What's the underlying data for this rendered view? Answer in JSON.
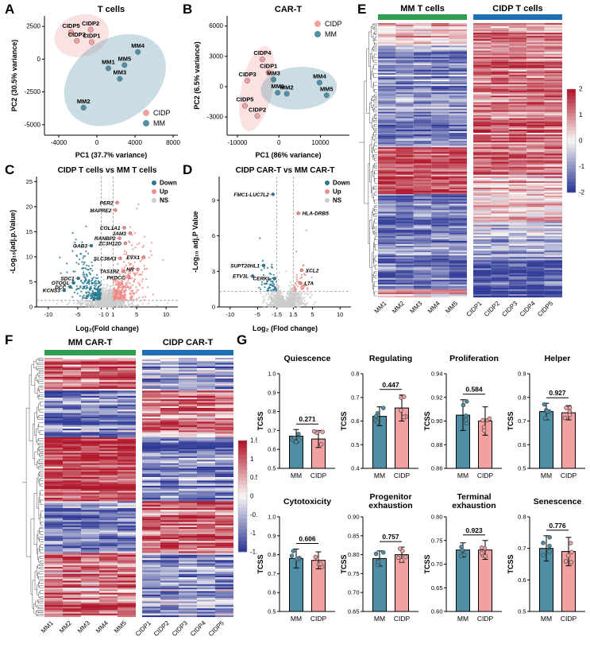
{
  "panel_letters": {
    "A": "A",
    "B": "B",
    "C": "C",
    "D": "D",
    "E": "E",
    "F": "F",
    "G": "G"
  },
  "colors": {
    "cidp_pink": "#F2A0A0",
    "cidp_pink_text": "#E06E6E",
    "mm_teal": "#4E8FA6",
    "mm_teal_text": "#2F6F85",
    "up_pink": "#EE8B87",
    "down_teal": "#27798F",
    "ns_gray": "#CBCBCB",
    "green_header": "#2E9E50",
    "blue_header": "#1F6FB5",
    "heat_pos": "#B2182B",
    "heat_neg": "#2F3A97",
    "heat_mid": "#F9F7F5"
  },
  "chart_data": [
    {
      "panel": "A",
      "type": "scatter",
      "title": "T cells",
      "xlabel": "PC1 (37.7% variance)",
      "ylabel": "PC2 (30.5% variance)",
      "xlim": [
        -5500,
        8500
      ],
      "ylim": [
        -5800,
        3300
      ],
      "xticks": [
        -4000,
        0,
        4000,
        8000
      ],
      "yticks": [
        -5000,
        -2500,
        0,
        2500
      ],
      "legend": [
        {
          "label": "CIDP",
          "color_key": "cidp_pink"
        },
        {
          "label": "MM",
          "color_key": "mm_teal"
        }
      ],
      "legend_pos": "bottom-right",
      "ellipses": [
        {
          "group": "CIDP",
          "cx": -1600,
          "cy": 1800,
          "rx": 2900,
          "ry": 1600,
          "rot": -15
        },
        {
          "group": "MM",
          "cx": 1900,
          "cy": -1600,
          "rx": 5800,
          "ry": 3100,
          "rot": -35
        }
      ],
      "groups": [
        {
          "name": "CIDP",
          "color_key": "cidp_pink",
          "points": [
            {
              "label": "CIDP5",
              "x": -2700,
              "y": 2050
            },
            {
              "label": "CIDP2",
              "x": -650,
              "y": 2250
            },
            {
              "label": "CIDP3",
              "x": -2100,
              "y": 1400
            },
            {
              "label": "CIDP1",
              "x": -550,
              "y": 1300
            }
          ]
        },
        {
          "name": "MM",
          "color_key": "mm_teal",
          "points": [
            {
              "label": "MM4",
              "x": 4300,
              "y": 550
            },
            {
              "label": "MM5",
              "x": 2900,
              "y": -450
            },
            {
              "label": "MM1",
              "x": 1200,
              "y": -700
            },
            {
              "label": "MM3",
              "x": 2400,
              "y": -1500
            },
            {
              "label": "MM2",
              "x": -1400,
              "y": -3700
            }
          ]
        }
      ]
    },
    {
      "panel": "B",
      "type": "scatter",
      "title": "CAR-T",
      "xlabel": "PC1 (86% variance)",
      "ylabel": "PC2 (6.5% variance)",
      "xlim": [
        -12500,
        17000
      ],
      "ylim": [
        -4800,
        7000
      ],
      "xticks": [
        -10000,
        0,
        10000
      ],
      "yticks": [
        -3000,
        0,
        3000,
        6000
      ],
      "legend": [
        {
          "label": "CIDP",
          "color_key": "cidp_pink"
        },
        {
          "label": "MM",
          "color_key": "mm_teal"
        }
      ],
      "legend_pos": "top-right",
      "ellipses": [
        {
          "group": "CIDP",
          "cx": -5300,
          "cy": -200,
          "rx": 3800,
          "ry": 4300,
          "rot": 12
        },
        {
          "group": "MM",
          "cx": 4800,
          "cy": -150,
          "rx": 9200,
          "ry": 2100,
          "rot": -4
        }
      ],
      "groups": [
        {
          "name": "CIDP",
          "color_key": "cidp_pink",
          "points": [
            {
              "label": "CIDP4",
              "x": -4000,
              "y": 2700
            },
            {
              "label": "CIDP1",
              "x": -2500,
              "y": 1400
            },
            {
              "label": "CIDP3",
              "x": -7600,
              "y": 600
            },
            {
              "label": "CIDP5",
              "x": -8200,
              "y": -1900
            },
            {
              "label": "CIDP2",
              "x": -5200,
              "y": -2900
            }
          ]
        },
        {
          "name": "MM",
          "color_key": "mm_teal",
          "points": [
            {
              "label": "MM3",
              "x": -1300,
              "y": 700
            },
            {
              "label": "MM4",
              "x": 9800,
              "y": 400
            },
            {
              "label": "MM1",
              "x": -300,
              "y": -600
            },
            {
              "label": "MM2",
              "x": 1900,
              "y": -700
            },
            {
              "label": "MM5",
              "x": 11500,
              "y": -850
            }
          ]
        }
      ]
    },
    {
      "panel": "C",
      "type": "volcano",
      "title": "CIDP T cells vs MM T cells",
      "xlabel": "Log₂(Fold change)",
      "ylabel": "-Log₁₀(adj.p.Value)",
      "xlim": [
        -12,
        12
      ],
      "ylim": [
        0,
        26
      ],
      "xticks": [
        -10,
        -5,
        -1,
        0,
        1,
        5,
        10
      ],
      "yticks": [
        0,
        5,
        10,
        15,
        20,
        25
      ],
      "vlines": [
        -1,
        1
      ],
      "hline": 1.3,
      "legend": [
        {
          "label": "Down",
          "color_key": "down_teal"
        },
        {
          "label": "Up",
          "color_key": "up_pink"
        },
        {
          "label": "NS",
          "color_key": "ns_gray"
        }
      ],
      "genes": [
        {
          "name": "PER2",
          "x": 1.7,
          "y": 20.8,
          "dir": "up",
          "side": "left"
        },
        {
          "name": "MAPRE2",
          "x": 1.4,
          "y": 19.3,
          "dir": "up",
          "side": "left"
        },
        {
          "name": "COL1A1",
          "x": 2.9,
          "y": 15.8,
          "dir": "up",
          "side": "left"
        },
        {
          "name": "JAM3",
          "x": 3.9,
          "y": 14.7,
          "dir": "up",
          "side": "left"
        },
        {
          "name": "RANBP2",
          "x": 2.1,
          "y": 13.7,
          "dir": "up",
          "side": "left"
        },
        {
          "name": "ZC3H12D",
          "x": 3.1,
          "y": 12.7,
          "dir": "up",
          "side": "left"
        },
        {
          "name": "GAB3",
          "x": -2.7,
          "y": 12.2,
          "dir": "down",
          "side": "left"
        },
        {
          "name": "SLC38A3",
          "x": 2.2,
          "y": 9.7,
          "dir": "up",
          "side": "left"
        },
        {
          "name": "EVX1",
          "x": 6.2,
          "y": 9.9,
          "dir": "up",
          "side": "left"
        },
        {
          "name": "TAS1R2",
          "x": 2.7,
          "y": 7.1,
          "dir": "up",
          "side": "left"
        },
        {
          "name": "HR",
          "x": 5.2,
          "y": 7.5,
          "dir": "up",
          "side": "left"
        },
        {
          "name": "PKDCC",
          "x": 3.7,
          "y": 5.9,
          "dir": "up",
          "side": "left"
        },
        {
          "name": "SDC1",
          "x": -4.9,
          "y": 5.7,
          "dir": "down",
          "side": "left"
        },
        {
          "name": "OTOGL",
          "x": -5.7,
          "y": 4.8,
          "dir": "down",
          "side": "left"
        },
        {
          "name": "DCC",
          "x": -6.3,
          "y": 4.0,
          "dir": "down",
          "side": "left"
        },
        {
          "name": "KCNS3",
          "x": -7.3,
          "y": 3.3,
          "dir": "down",
          "side": "left"
        }
      ]
    },
    {
      "panel": "D",
      "type": "volcano",
      "title": "CIDP CAR-T vs MM CAR-T",
      "xlabel": "Log₂ (Flod change)",
      "ylabel": "-Log₁₀ adj.P Value",
      "xlim": [
        -12,
        12
      ],
      "ylim": [
        0,
        11
      ],
      "xticks": [
        -10,
        -5,
        -1.5,
        1.5,
        5,
        10
      ],
      "yticks": [
        0,
        3,
        6,
        9
      ],
      "vlines": [
        -1.5,
        1.5
      ],
      "hline": 1.3,
      "legend": [
        {
          "label": "Down",
          "color_key": "down_teal"
        },
        {
          "label": "Up",
          "color_key": "up_pink"
        },
        {
          "label": "NS",
          "color_key": "ns_gray"
        }
      ],
      "genes": [
        {
          "name": "FMC1-LUC7L2",
          "x": -2.2,
          "y": 9.5,
          "dir": "down",
          "side": "left"
        },
        {
          "name": "HLA-DRB5",
          "x": 2.4,
          "y": 7.9,
          "dir": "up",
          "side": "right"
        },
        {
          "name": "SUPT20HL1",
          "x": -3.9,
          "y": 3.5,
          "dir": "down",
          "side": "left"
        },
        {
          "name": "ETV3L",
          "x": -5.9,
          "y": 2.6,
          "dir": "down",
          "side": "left"
        },
        {
          "name": "CERKL",
          "x": -1.9,
          "y": 2.4,
          "dir": "down",
          "side": "left"
        },
        {
          "name": "XCL2",
          "x": 3.0,
          "y": 3.1,
          "dir": "up",
          "side": "right"
        },
        {
          "name": "LTA",
          "x": 2.8,
          "y": 2.0,
          "dir": "up",
          "side": "right"
        }
      ]
    },
    {
      "panel": "E",
      "type": "heatmap",
      "group_headers": [
        {
          "label": "MM T cells",
          "color_key": "green_header"
        },
        {
          "label": "CIDP T cells",
          "color_key": "blue_header"
        }
      ],
      "columns": [
        "MM1",
        "MM2",
        "MM3",
        "MM4",
        "MM5",
        "CIDP1",
        "CIDP2",
        "CIDP3",
        "CIDP4",
        "CIDP5"
      ],
      "colorbar_ticks": [
        2,
        1,
        0,
        -1,
        -2
      ],
      "scale": 2,
      "n_rows": 170,
      "seed": 42,
      "profiles": {
        "MM": [
          [
            0.08,
            0.7
          ],
          [
            0.45,
            -1.1
          ],
          [
            0.62,
            1.6
          ],
          [
            0.97,
            -1.3
          ],
          [
            1,
            0.6
          ]
        ],
        "CIDP": [
          [
            0.55,
            1.2
          ],
          [
            0.72,
            0.6
          ],
          [
            0.85,
            -0.6
          ],
          [
            1,
            -1.7
          ]
        ]
      }
    },
    {
      "panel": "F",
      "type": "heatmap",
      "group_headers": [
        {
          "label": "MM CAR-T",
          "color_key": "green_header"
        },
        {
          "label": "CIDP CAR-T",
          "color_key": "blue_header"
        }
      ],
      "columns": [
        "MM1",
        "MM2",
        "MM3",
        "MM4",
        "MM5",
        "CIDP1",
        "CIDP2",
        "CIDP3",
        "CIDP4",
        "CIDP5"
      ],
      "colorbar_ticks": [
        1.5,
        1,
        0.5,
        0,
        -0.5,
        -1,
        -1.5
      ],
      "scale": 1.5,
      "n_rows": 150,
      "seed": 99,
      "profiles": {
        "MM": [
          [
            0.12,
            0.9
          ],
          [
            0.3,
            -0.9
          ],
          [
            0.55,
            1.3
          ],
          [
            0.75,
            -1.0
          ],
          [
            1,
            0.8
          ]
        ],
        "CIDP": [
          [
            0.12,
            -0.6
          ],
          [
            0.3,
            0.8
          ],
          [
            0.55,
            -1.1
          ],
          [
            0.75,
            0.9
          ],
          [
            1,
            -0.7
          ]
        ]
      }
    },
    {
      "panel": "G",
      "type": "bar",
      "title_lines": [
        "Quiescence"
      ],
      "p_value": "0.271",
      "ylabel": "TCSS",
      "ylim": [
        0.5,
        1.0
      ],
      "yticks": [
        0.5,
        0.6,
        0.7,
        0.8,
        0.9,
        1.0
      ],
      "tick_decimals": 1,
      "categories": [
        "MM",
        "CIDP"
      ],
      "n_dots": 5,
      "seed": 1,
      "series": [
        {
          "name": "MM",
          "mean": 0.67,
          "sd": 0.035,
          "color_key": "mm_teal"
        },
        {
          "name": "CIDP",
          "mean": 0.655,
          "sd": 0.045,
          "color_key": "cidp_pink"
        }
      ]
    },
    {
      "panel": "G",
      "type": "bar",
      "title_lines": [
        "Regulating"
      ],
      "p_value": "0.447",
      "ylabel": "TCSS",
      "ylim": [
        0.4,
        0.8
      ],
      "yticks": [
        0.4,
        0.5,
        0.6,
        0.7,
        0.8
      ],
      "tick_decimals": 1,
      "categories": [
        "MM",
        "CIDP"
      ],
      "n_dots": 5,
      "seed": 2,
      "series": [
        {
          "name": "MM",
          "mean": 0.62,
          "sd": 0.04,
          "color_key": "mm_teal"
        },
        {
          "name": "CIDP",
          "mean": 0.655,
          "sd": 0.055,
          "color_key": "cidp_pink"
        }
      ]
    },
    {
      "panel": "G",
      "type": "bar",
      "title_lines": [
        "Proliferation"
      ],
      "p_value": "0.584",
      "ylabel": "TCSS",
      "ylim": [
        0.86,
        0.94
      ],
      "yticks": [
        0.86,
        0.88,
        0.9,
        0.92,
        0.94
      ],
      "tick_decimals": 2,
      "categories": [
        "MM",
        "CIDP"
      ],
      "n_dots": 5,
      "seed": 3,
      "series": [
        {
          "name": "MM",
          "mean": 0.905,
          "sd": 0.013,
          "color_key": "mm_teal"
        },
        {
          "name": "CIDP",
          "mean": 0.9,
          "sd": 0.012,
          "color_key": "cidp_pink"
        }
      ]
    },
    {
      "panel": "G",
      "type": "bar",
      "title_lines": [
        "Helper"
      ],
      "p_value": "0.927",
      "ylabel": "TCSS",
      "ylim": [
        0.5,
        0.9
      ],
      "yticks": [
        0.5,
        0.6,
        0.7,
        0.8,
        0.9
      ],
      "tick_decimals": 1,
      "categories": [
        "MM",
        "CIDP"
      ],
      "n_dots": 5,
      "seed": 4,
      "series": [
        {
          "name": "MM",
          "mean": 0.74,
          "sd": 0.035,
          "color_key": "mm_teal"
        },
        {
          "name": "CIDP",
          "mean": 0.735,
          "sd": 0.03,
          "color_key": "cidp_pink"
        }
      ]
    },
    {
      "panel": "G",
      "type": "bar",
      "title_lines": [
        "Cytotoxicity"
      ],
      "p_value": "0.606",
      "ylabel": "TCSS",
      "ylim": [
        0.5,
        1.0
      ],
      "yticks": [
        0.5,
        0.6,
        0.7,
        0.8,
        0.9,
        1.0
      ],
      "tick_decimals": 1,
      "categories": [
        "MM",
        "CIDP"
      ],
      "n_dots": 5,
      "seed": 5,
      "series": [
        {
          "name": "MM",
          "mean": 0.78,
          "sd": 0.05,
          "color_key": "mm_teal"
        },
        {
          "name": "CIDP",
          "mean": 0.77,
          "sd": 0.045,
          "color_key": "cidp_pink"
        }
      ]
    },
    {
      "panel": "G",
      "type": "bar",
      "title_lines": [
        "Progenitor",
        "exhaustion"
      ],
      "p_value": "0.757",
      "ylabel": "TCSS",
      "ylim": [
        0.65,
        0.9
      ],
      "yticks": [
        0.65,
        0.7,
        0.75,
        0.8,
        0.85,
        0.9
      ],
      "tick_decimals": 2,
      "categories": [
        "MM",
        "CIDP"
      ],
      "n_dots": 5,
      "seed": 6,
      "series": [
        {
          "name": "MM",
          "mean": 0.79,
          "sd": 0.02,
          "color_key": "mm_teal"
        },
        {
          "name": "CIDP",
          "mean": 0.8,
          "sd": 0.02,
          "color_key": "cidp_pink"
        }
      ]
    },
    {
      "panel": "G",
      "type": "bar",
      "title_lines": [
        "Terminal",
        "exhaustion"
      ],
      "p_value": "0.923",
      "ylabel": "TCSS",
      "ylim": [
        0.6,
        0.8
      ],
      "yticks": [
        0.6,
        0.65,
        0.7,
        0.75,
        0.8
      ],
      "tick_decimals": 2,
      "categories": [
        "MM",
        "CIDP"
      ],
      "n_dots": 5,
      "seed": 7,
      "series": [
        {
          "name": "MM",
          "mean": 0.73,
          "sd": 0.015,
          "color_key": "mm_teal"
        },
        {
          "name": "CIDP",
          "mean": 0.73,
          "sd": 0.02,
          "color_key": "cidp_pink"
        }
      ]
    },
    {
      "panel": "G",
      "type": "bar",
      "title_lines": [
        "Senescence"
      ],
      "p_value": "0.776",
      "ylabel": "TCSS",
      "ylim": [
        0.5,
        0.8
      ],
      "yticks": [
        0.5,
        0.6,
        0.7,
        0.8
      ],
      "tick_decimals": 1,
      "categories": [
        "MM",
        "CIDP"
      ],
      "n_dots": 5,
      "seed": 8,
      "series": [
        {
          "name": "MM",
          "mean": 0.7,
          "sd": 0.04,
          "color_key": "mm_teal"
        },
        {
          "name": "CIDP",
          "mean": 0.69,
          "sd": 0.045,
          "color_key": "cidp_pink"
        }
      ]
    }
  ]
}
